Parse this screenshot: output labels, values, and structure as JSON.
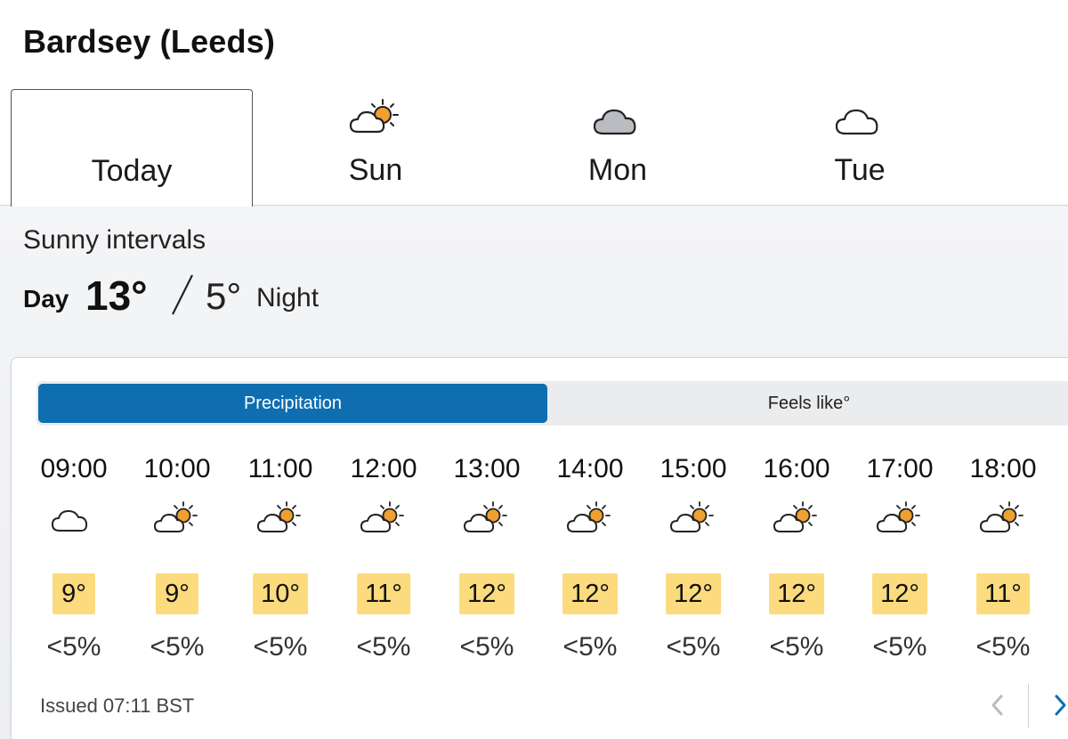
{
  "location": "Bardsey (Leeds)",
  "days": [
    {
      "label": "Today",
      "icon": "sunny-intervals-icon",
      "active": true
    },
    {
      "label": "Sun",
      "icon": "sunny-intervals-icon",
      "active": false
    },
    {
      "label": "Mon",
      "icon": "cloudy-icon",
      "active": false
    },
    {
      "label": "Tue",
      "icon": "light-cloud-icon",
      "active": false
    }
  ],
  "summary": {
    "condition": "Sunny intervals",
    "day_word": "Day",
    "day_temp": "13°",
    "night_temp": "5°",
    "night_word": "Night"
  },
  "toggle": {
    "precipitation": "Precipitation",
    "feels_like": "Feels like°"
  },
  "hours": [
    {
      "time": "09:00",
      "icon": "light-cloud-icon",
      "temp": "9°",
      "precip": "<5%"
    },
    {
      "time": "10:00",
      "icon": "sunny-intervals-icon",
      "temp": "9°",
      "precip": "<5%"
    },
    {
      "time": "11:00",
      "icon": "sunny-intervals-icon",
      "temp": "10°",
      "precip": "<5%"
    },
    {
      "time": "12:00",
      "icon": "sunny-intervals-icon",
      "temp": "11°",
      "precip": "<5%"
    },
    {
      "time": "13:00",
      "icon": "sunny-intervals-icon",
      "temp": "12°",
      "precip": "<5%"
    },
    {
      "time": "14:00",
      "icon": "sunny-intervals-icon",
      "temp": "12°",
      "precip": "<5%"
    },
    {
      "time": "15:00",
      "icon": "sunny-intervals-icon",
      "temp": "12°",
      "precip": "<5%"
    },
    {
      "time": "16:00",
      "icon": "sunny-intervals-icon",
      "temp": "12°",
      "precip": "<5%"
    },
    {
      "time": "17:00",
      "icon": "sunny-intervals-icon",
      "temp": "12°",
      "precip": "<5%"
    },
    {
      "time": "18:00",
      "icon": "sunny-intervals-icon",
      "temp": "11°",
      "precip": "<5%"
    }
  ],
  "issued": "Issued 07:11 BST",
  "colors": {
    "accent": "#0f6eb0",
    "temp_box": "#fbdb7d",
    "sun": "#f0a030"
  }
}
